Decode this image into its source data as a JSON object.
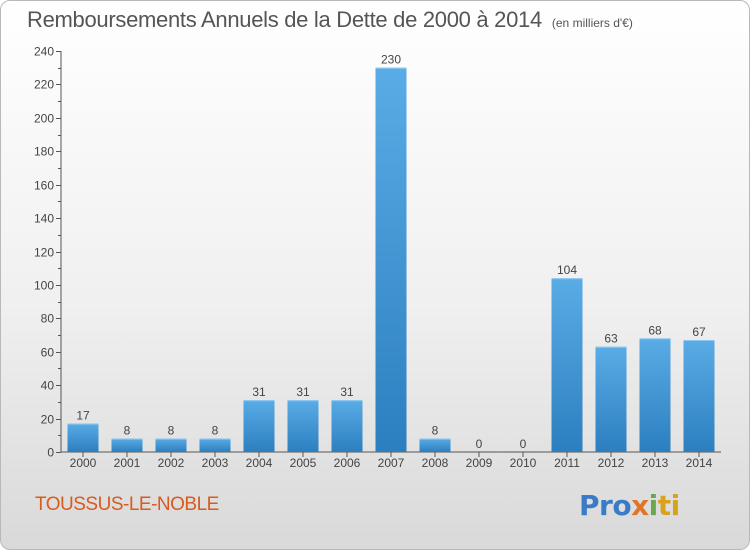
{
  "chart_title": "Remboursements Annuels de la Dette de 2000 à 2014",
  "chart_unit": "(en milliers d'€)",
  "commune": "TOUSSUS-LE-NOBLE",
  "logo": [
    "Pro",
    "x",
    "i",
    "ti"
  ],
  "colors": {
    "bar_top": "#5aace6",
    "bar_bottom": "#2c7fbf",
    "axis": "#555555",
    "grid": "#999999",
    "commune": "#d95b1d"
  },
  "chart_data": {
    "type": "bar",
    "categories": [
      "2000",
      "2001",
      "2002",
      "2003",
      "2004",
      "2005",
      "2006",
      "2007",
      "2008",
      "2009",
      "2010",
      "2011",
      "2012",
      "2013",
      "2014"
    ],
    "values": [
      17,
      8,
      8,
      8,
      31,
      31,
      31,
      230,
      8,
      0,
      0,
      104,
      63,
      68,
      67
    ],
    "title": "Remboursements Annuels de la Dette de 2000 à 2014",
    "xlabel": "",
    "ylabel": "",
    "ylim": [
      0,
      240
    ],
    "yticks": [
      0,
      20,
      40,
      60,
      80,
      100,
      120,
      140,
      160,
      180,
      200,
      220,
      240
    ],
    "grid": false,
    "legend": "none"
  }
}
